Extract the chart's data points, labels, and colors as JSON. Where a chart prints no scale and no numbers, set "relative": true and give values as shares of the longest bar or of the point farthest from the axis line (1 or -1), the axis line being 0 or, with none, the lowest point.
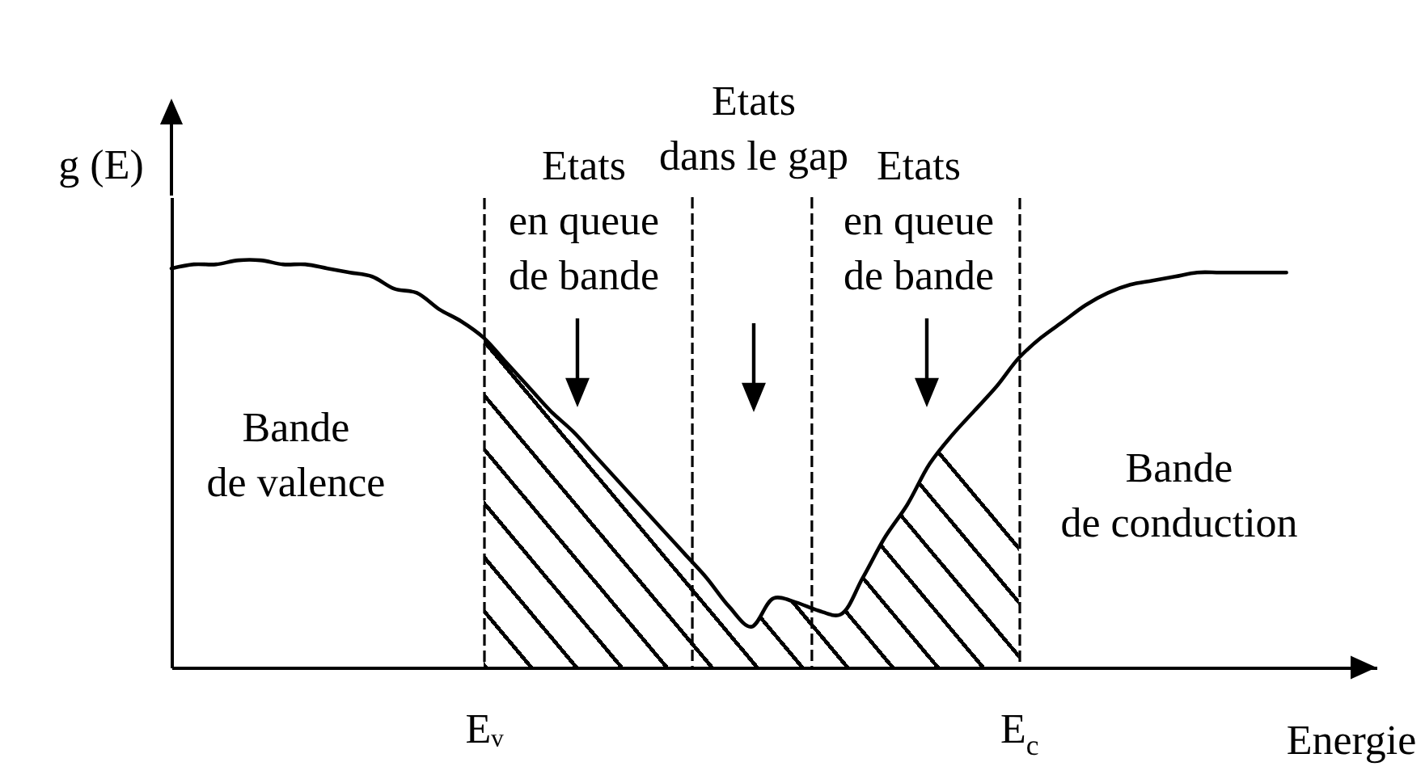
{
  "chart_data": {
    "type": "line",
    "relative": true,
    "xlabel": "Energie",
    "ylabel": "g (E)",
    "categories": [
      null,
      null,
      null,
      null,
      null,
      null,
      null,
      null,
      null,
      null,
      null,
      null,
      null,
      null,
      "Eᵥ",
      null,
      null,
      null,
      null,
      null,
      null,
      null,
      null,
      null,
      null,
      null,
      null,
      null,
      null,
      null,
      null,
      null,
      null,
      null,
      null,
      null,
      null,
      null,
      "E$_{c}$",
      null,
      null,
      null,
      null,
      null,
      null,
      null,
      null,
      null,
      null,
      null,
      null
    ],
    "tick_labels": "x",
    "grid": "x",
    "series": [
      {
        "type": "area",
        "color": "#000000",
        "values": [
          null,
          null,
          null,
          null,
          null,
          null,
          null,
          null,
          null,
          null,
          null,
          null,
          null,
          null,
          0.81,
          0.75,
          0.69,
          0.63,
          0.58,
          0.52,
          0.46,
          0.4,
          0.34,
          0.28,
          0.22,
          0.15,
          0.1,
          0.17,
          0.16,
          0.14,
          0.13,
          0.22,
          0.32,
          0.4,
          0.5,
          0.57,
          0.63,
          0.69,
          0.76,
          null,
          null,
          null,
          null,
          null,
          null,
          null,
          null,
          null,
          null,
          null,
          null
        ]
      },
      {
        "color": "#000000",
        "values": [
          0.98,
          0.99,
          0.99,
          1.0,
          1.0,
          0.99,
          0.99,
          0.98,
          0.97,
          0.96,
          0.93,
          0.92,
          0.88,
          0.85,
          0.81,
          0.75,
          0.69,
          0.63,
          0.58,
          0.52,
          0.46,
          0.4,
          0.34,
          0.28,
          0.22,
          0.15,
          0.1,
          0.17,
          0.16,
          0.14,
          0.13,
          0.22,
          0.32,
          0.4,
          0.5,
          0.57,
          0.63,
          0.69,
          0.76,
          0.81,
          0.85,
          0.89,
          0.92,
          0.94,
          0.95,
          0.96,
          0.97,
          0.97,
          0.97,
          0.97,
          0.97
        ]
      }
    ],
    "annotations": [
      "Etats\nen queue\nde bande",
      "Etats\ndans le gap",
      "Etats\nen queue\nde bande",
      "Bande\nde valence",
      "Bande\nde conduction"
    ]
  }
}
